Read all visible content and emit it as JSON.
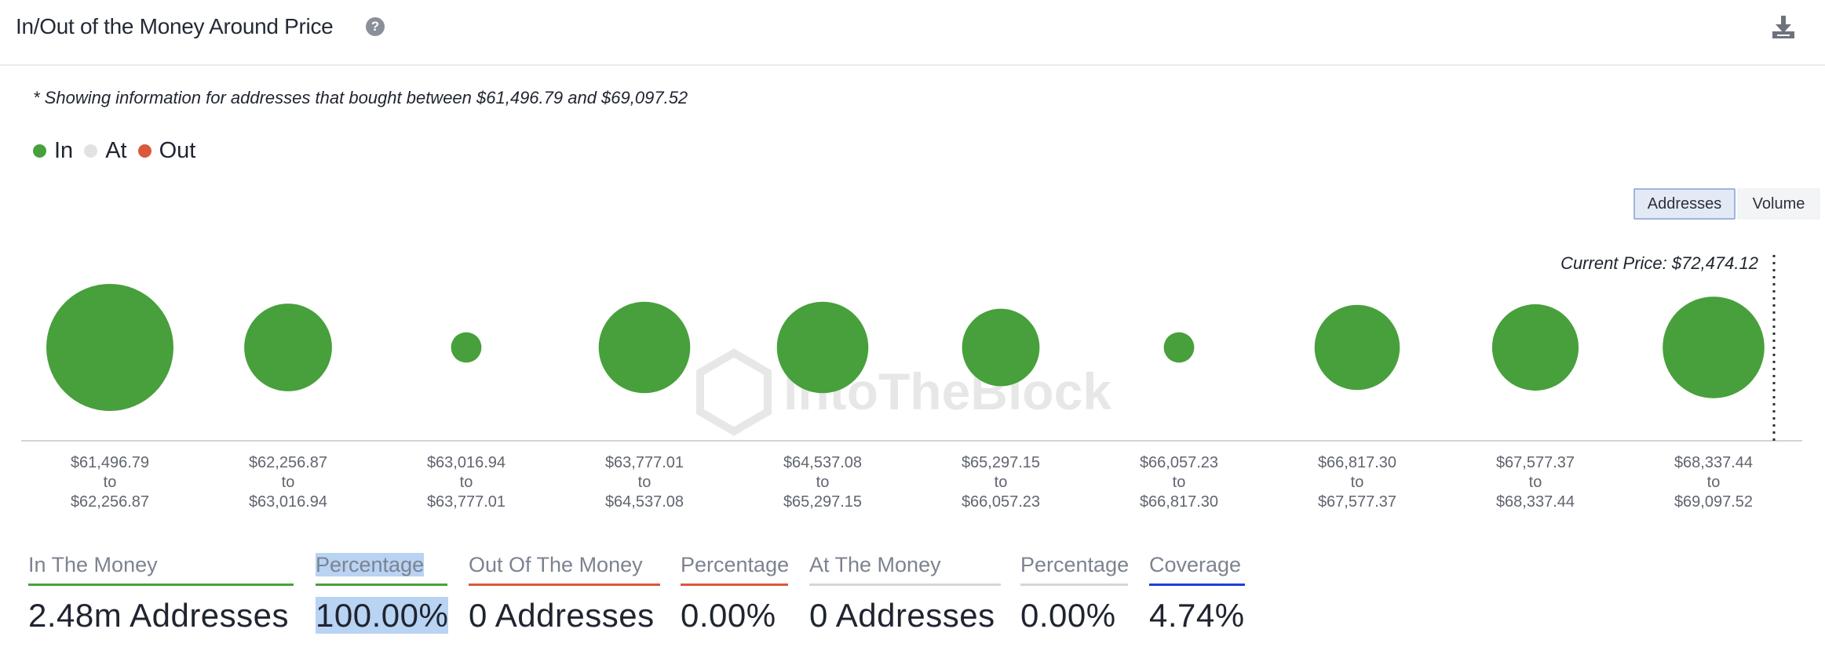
{
  "header": {
    "title": "In/Out of the Money Around Price",
    "help_icon": "question-circle-icon",
    "download_icon": "download-icon"
  },
  "note": "* Showing information for addresses that bought between $61,496.79 and $69,097.52",
  "legend": [
    {
      "label": "In",
      "color": "#47a03b"
    },
    {
      "label": "At",
      "color": "#e2e2e2"
    },
    {
      "label": "Out",
      "color": "#d9593d"
    }
  ],
  "toggles": {
    "addresses": "Addresses",
    "volume": "Volume"
  },
  "current_price_label": "Current Price: $72,474.12",
  "watermark": "IntoTheBlock",
  "chart_data": {
    "type": "bubble",
    "series": [
      {
        "name": "In",
        "color": "#47a03b"
      }
    ],
    "categories": [
      {
        "from": "$61,496.79",
        "to": "$62,256.87",
        "relative_size": 1.0
      },
      {
        "from": "$62,256.87",
        "to": "$63,016.94",
        "relative_size": 0.69
      },
      {
        "from": "$63,016.94",
        "to": "$63,777.01",
        "relative_size": 0.24
      },
      {
        "from": "$63,777.01",
        "to": "$64,537.08",
        "relative_size": 0.72
      },
      {
        "from": "$64,537.08",
        "to": "$65,297.15",
        "relative_size": 0.72
      },
      {
        "from": "$65,297.15",
        "to": "$66,057.23",
        "relative_size": 0.61
      },
      {
        "from": "$66,057.23",
        "to": "$66,817.30",
        "relative_size": 0.24
      },
      {
        "from": "$66,817.30",
        "to": "$67,577.37",
        "relative_size": 0.67
      },
      {
        "from": "$67,577.37",
        "to": "$68,337.44",
        "relative_size": 0.68
      },
      {
        "from": "$68,337.44",
        "to": "$69,097.52",
        "relative_size": 0.8
      }
    ],
    "range_connector": "to",
    "current_price": "$72,474.12"
  },
  "stats": [
    {
      "label": "In The Money",
      "value": "2.48m Addresses",
      "line_color": "#47a03b"
    },
    {
      "label": "Percentage",
      "value": "100.00%",
      "line_color": "#47a03b"
    },
    {
      "label": "Out Of The Money",
      "value": "0 Addresses",
      "line_color": "#d9593d"
    },
    {
      "label": "Percentage",
      "value": "0.00%",
      "line_color": "#d9593d"
    },
    {
      "label": "At The Money",
      "value": "0 Addresses",
      "line_color": "#d6d6d6"
    },
    {
      "label": "Percentage",
      "value": "0.00%",
      "line_color": "#d6d6d6"
    },
    {
      "label": "Coverage",
      "value": "4.74%",
      "line_color": "#1f3fd6"
    }
  ]
}
